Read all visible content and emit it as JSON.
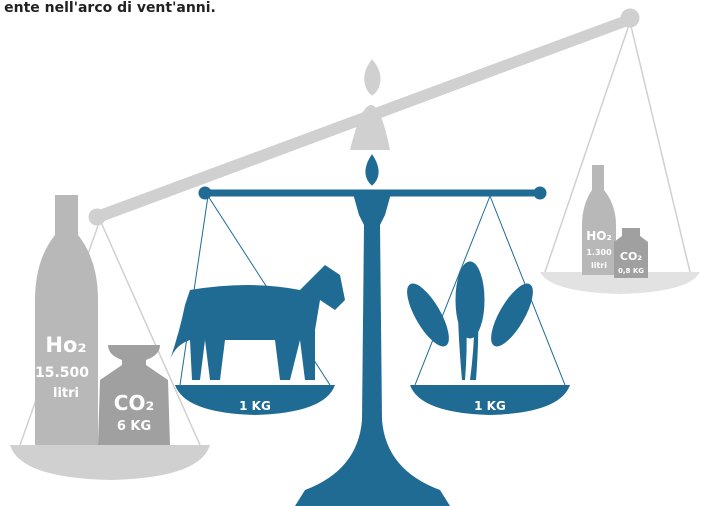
{
  "caption": "ente nell'arco di vent'anni.",
  "left_weights": {
    "water_label": "Ho₂",
    "water_amount": "15.500",
    "water_unit": "litri",
    "co2_label": "CO₂",
    "co2_amount": "6 KG"
  },
  "center_pans": {
    "left_label": "1 KG",
    "right_label": "1 KG"
  },
  "right_weights": {
    "water_label": "HO₂",
    "water_amount": "1.300",
    "water_unit": "litri",
    "co2_label": "CO₂",
    "co2_amount": "0,8 KG"
  }
}
